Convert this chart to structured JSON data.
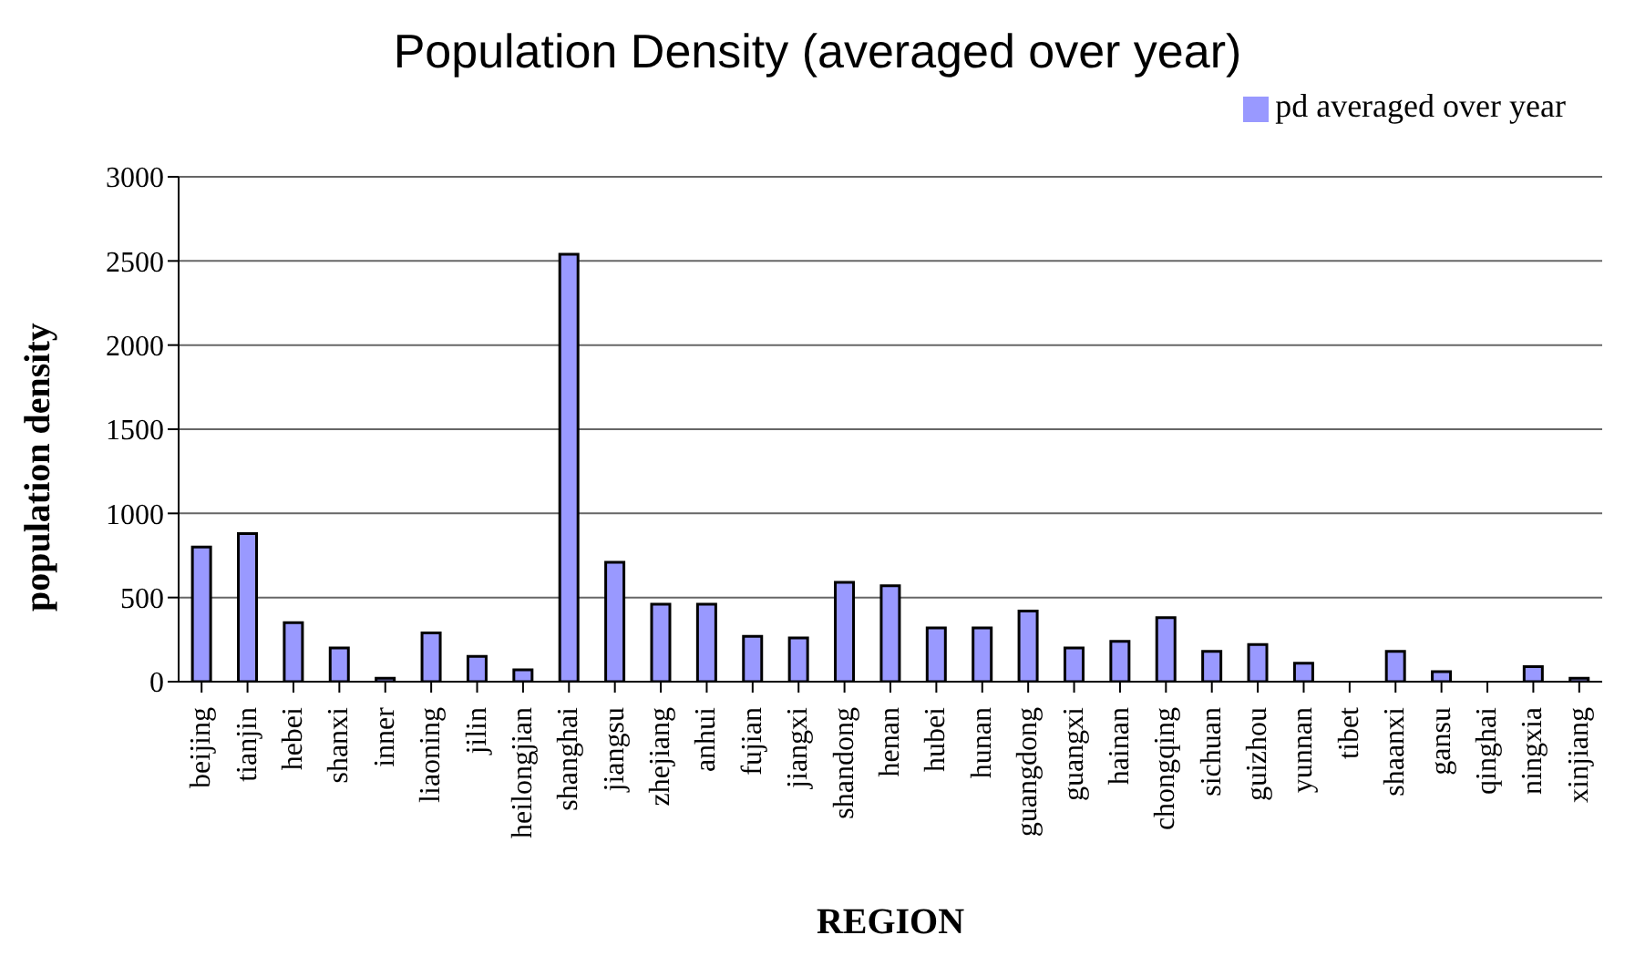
{
  "chart_data": {
    "type": "bar",
    "title": "Population Density (averaged over year)",
    "xlabel": "REGION",
    "ylabel": "population density",
    "categories": [
      "beijing",
      "tianjin",
      "hebei",
      "shanxi",
      "inner",
      "liaoning",
      "jilin",
      "heilongjian",
      "shanghai",
      "jiangsu",
      "zhejiang",
      "anhui",
      "fujian",
      "jiangxi",
      "shandong",
      "henan",
      "hubei",
      "hunan",
      "guangdong",
      "guangxi",
      "hainan",
      "chongqing",
      "sichuan",
      "guizhou",
      "yunnan",
      "tibet",
      "shaanxi",
      "gansu",
      "qinghai",
      "ningxia",
      "xinjiang"
    ],
    "series": [
      {
        "name": "pd averaged over year",
        "color": "#9999ff",
        "values": [
          800,
          880,
          350,
          200,
          20,
          290,
          150,
          70,
          2540,
          710,
          460,
          460,
          270,
          260,
          590,
          570,
          320,
          320,
          420,
          200,
          240,
          380,
          180,
          220,
          110,
          0,
          180,
          60,
          0,
          90,
          20
        ]
      }
    ],
    "ylim": [
      0,
      3000
    ],
    "yticks": [
      0,
      500,
      1000,
      1500,
      2000,
      2500,
      3000
    ],
    "grid": "y",
    "legend": "top right"
  }
}
